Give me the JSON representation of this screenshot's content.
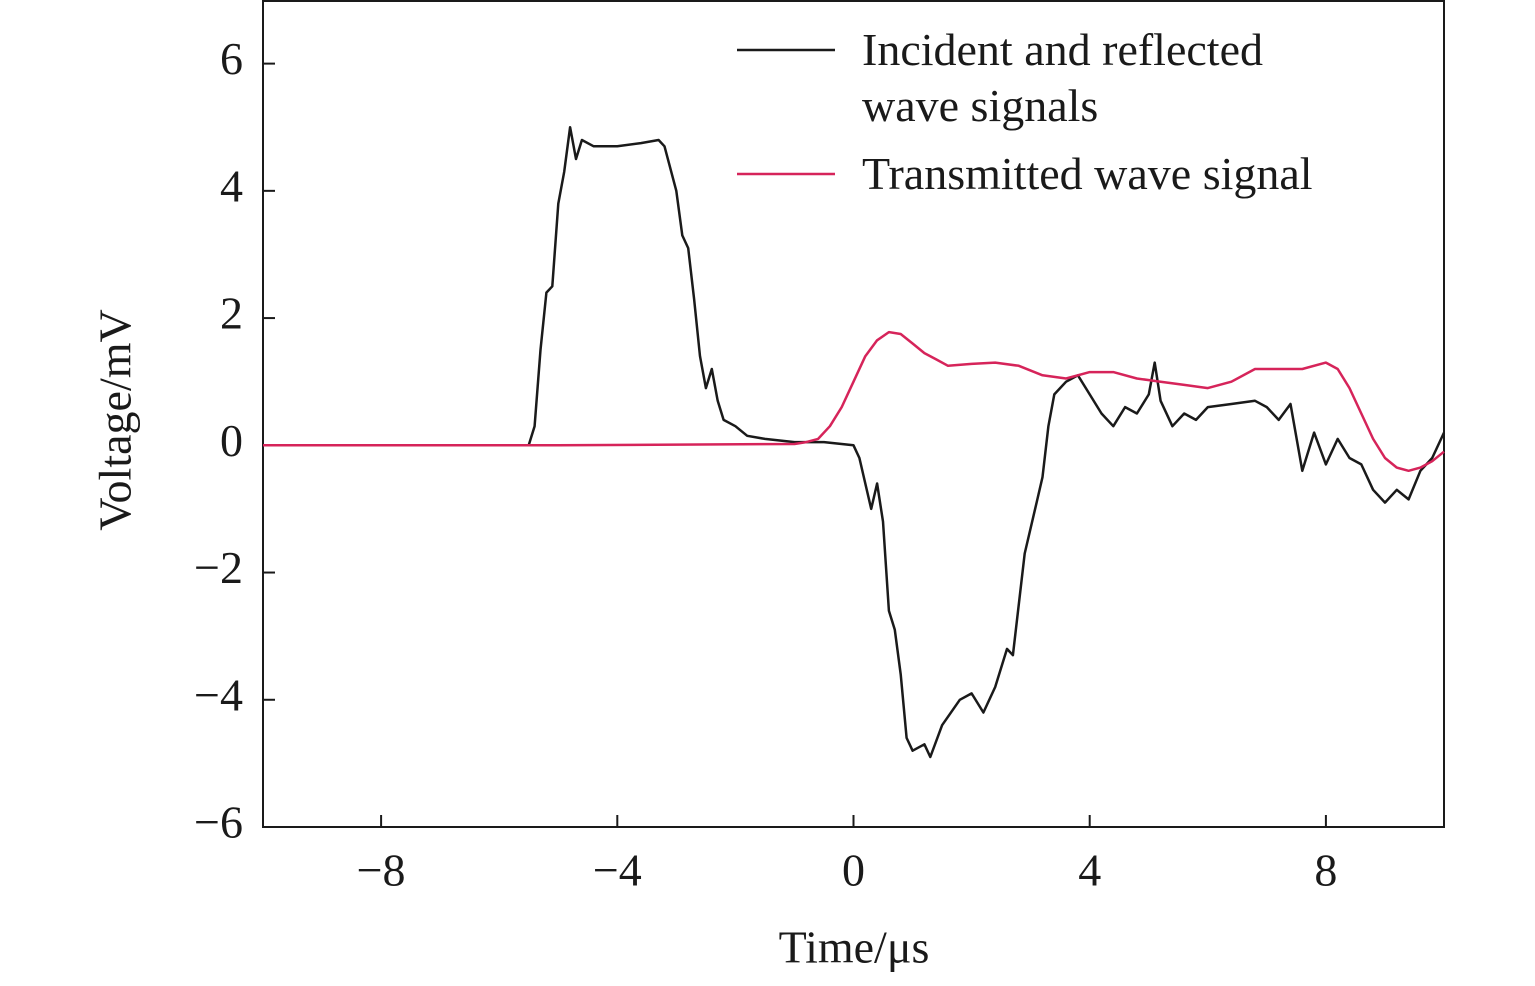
{
  "chart_data": {
    "type": "line",
    "x_label": "Time/μs",
    "y_label": "Voltage/mV",
    "xlim": [
      -10,
      10
    ],
    "ylim": [
      -6,
      7
    ],
    "xticks": [
      {
        "value": -8,
        "label": "−8"
      },
      {
        "value": -4,
        "label": "−4"
      },
      0,
      4,
      8
    ],
    "yticks": [
      {
        "value": -6,
        "label": "−6"
      },
      {
        "value": -4,
        "label": "−4"
      },
      {
        "value": -2,
        "label": "−2"
      },
      0,
      2,
      4,
      6
    ],
    "legend": "upper right",
    "series": [
      {
        "name": "Incident and reflected\nwave signals",
        "color": "#1a1a1a",
        "x": [
          -10,
          -9,
          -8,
          -7,
          -6,
          -5.5,
          -5.4,
          -5.3,
          -5.2,
          -5.1,
          -5.0,
          -4.9,
          -4.8,
          -4.7,
          -4.6,
          -4.4,
          -4.0,
          -3.6,
          -3.3,
          -3.2,
          -3.0,
          -2.9,
          -2.8,
          -2.7,
          -2.6,
          -2.5,
          -2.4,
          -2.3,
          -2.2,
          -2.0,
          -1.8,
          -1.5,
          -1.0,
          -0.5,
          0,
          0.1,
          0.2,
          0.3,
          0.4,
          0.5,
          0.6,
          0.7,
          0.8,
          0.9,
          1.0,
          1.2,
          1.3,
          1.5,
          1.8,
          2.0,
          2.2,
          2.4,
          2.6,
          2.7,
          2.9,
          3.1,
          3.2,
          3.3,
          3.4,
          3.6,
          3.8,
          4.0,
          4.2,
          4.4,
          4.6,
          4.8,
          5.0,
          5.1,
          5.2,
          5.4,
          5.6,
          5.8,
          6.0,
          6.4,
          6.8,
          7.0,
          7.2,
          7.4,
          7.6,
          7.8,
          8.0,
          8.2,
          8.4,
          8.6,
          8.8,
          9.0,
          9.2,
          9.4,
          9.6,
          9.8,
          10
        ],
        "values": [
          0,
          0,
          0,
          0,
          0,
          0,
          0.3,
          1.5,
          2.4,
          2.5,
          3.8,
          4.3,
          5.0,
          4.5,
          4.8,
          4.7,
          4.7,
          4.75,
          4.8,
          4.7,
          4.0,
          3.3,
          3.1,
          2.3,
          1.4,
          0.9,
          1.2,
          0.7,
          0.4,
          0.3,
          0.15,
          0.1,
          0.05,
          0.05,
          0,
          -0.2,
          -0.6,
          -1.0,
          -0.6,
          -1.2,
          -2.6,
          -2.9,
          -3.6,
          -4.6,
          -4.8,
          -4.7,
          -4.9,
          -4.4,
          -4.0,
          -3.9,
          -4.2,
          -3.8,
          -3.2,
          -3.3,
          -1.7,
          -0.9,
          -0.5,
          0.3,
          0.8,
          1.0,
          1.1,
          0.8,
          0.5,
          0.3,
          0.6,
          0.5,
          0.8,
          1.3,
          0.7,
          0.3,
          0.5,
          0.4,
          0.6,
          0.65,
          0.7,
          0.6,
          0.4,
          0.65,
          -0.4,
          0.2,
          -0.3,
          0.1,
          -0.2,
          -0.3,
          -0.7,
          -0.9,
          -0.7,
          -0.85,
          -0.4,
          -0.2,
          0.2
        ]
      },
      {
        "name": "Transmitted wave signal",
        "color": "#d6245a",
        "x": [
          -10,
          -5,
          -1,
          -0.8,
          -0.6,
          -0.4,
          -0.2,
          0,
          0.2,
          0.4,
          0.6,
          0.8,
          1.0,
          1.2,
          1.4,
          1.6,
          2.0,
          2.4,
          2.8,
          3.2,
          3.6,
          4.0,
          4.4,
          4.8,
          5.2,
          5.6,
          6.0,
          6.4,
          6.8,
          7.2,
          7.6,
          8.0,
          8.2,
          8.4,
          8.6,
          8.8,
          9.0,
          9.2,
          9.4,
          9.6,
          9.8,
          10
        ],
        "values": [
          0,
          0,
          0.02,
          0.05,
          0.1,
          0.3,
          0.6,
          1.0,
          1.4,
          1.65,
          1.78,
          1.75,
          1.6,
          1.45,
          1.35,
          1.25,
          1.28,
          1.3,
          1.25,
          1.1,
          1.05,
          1.15,
          1.15,
          1.05,
          1.0,
          0.95,
          0.9,
          1.0,
          1.2,
          1.2,
          1.2,
          1.3,
          1.2,
          0.9,
          0.5,
          0.1,
          -0.2,
          -0.35,
          -0.4,
          -0.35,
          -0.25,
          -0.1
        ]
      }
    ]
  }
}
